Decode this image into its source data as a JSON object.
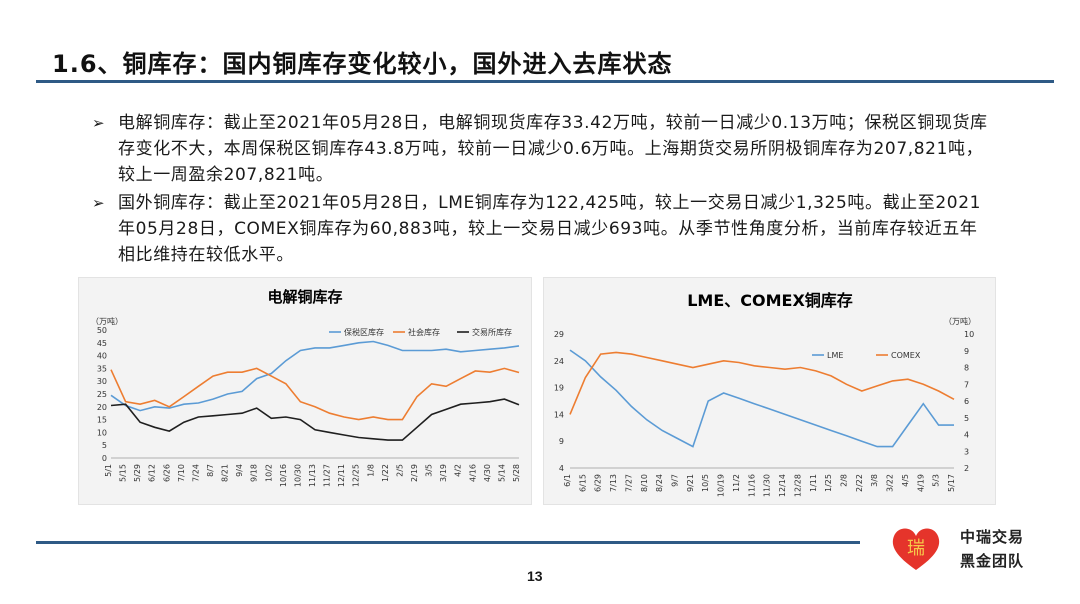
{
  "slide": {
    "title": "1.6、铜库存：国内铜库存变化较小，国外进入去库状态",
    "bullets": [
      "电解铜库存：截止至2021年05月28日，电解铜现货库存33.42万吨，较前一日减少0.13万吨；保税区铜现货库存变化不大，本周保税区铜库存43.8万吨，较前一日减少0.6万吨。上海期货交易所阴极铜库存为207,821吨，较上一周盈余207,821吨。",
      "国外铜库存：截止至2021年05月28日，LME铜库存为122,425吨，较上一交易日减少1,325吨。截止至2021年05月28日，COMEX铜库存为60,883吨，较上一交易日减少693吨。从季节性角度分析，当前库存较近五年相比维持在较低水平。"
    ],
    "page_number": "13",
    "logo": {
      "line1": "中瑞交易",
      "line2": "黑金团队",
      "glyph": "瑞"
    },
    "colors": {
      "accent": "#2e5a85",
      "heart": "#e5342b"
    }
  },
  "chart_data": [
    {
      "type": "line",
      "title": "电解铜库存",
      "unit": "（万吨）",
      "ylim": [
        0,
        50
      ],
      "yticks": [
        "0",
        "5",
        "10",
        "15",
        "20",
        "25",
        "30",
        "35",
        "40",
        "45",
        "50"
      ],
      "x": [
        "5/1",
        "5/15",
        "5/29",
        "6/12",
        "6/26",
        "7/10",
        "7/24",
        "8/7",
        "8/21",
        "9/4",
        "9/18",
        "10/2",
        "10/16",
        "10/30",
        "11/13",
        "11/27",
        "12/11",
        "12/25",
        "1/8",
        "1/22",
        "2/5",
        "2/19",
        "3/5",
        "3/19",
        "4/2",
        "4/16",
        "4/30",
        "5/14",
        "5/28"
      ],
      "series": [
        {
          "name": "保税区库存",
          "color": "#5b9bd5",
          "values": [
            24.5,
            20.5,
            18.5,
            20,
            19.5,
            21,
            21.5,
            23,
            25,
            26,
            31,
            33,
            38,
            42,
            43,
            43,
            44,
            45,
            45.5,
            44,
            42,
            42,
            42,
            42.5,
            41.5,
            42,
            42.5,
            43,
            43.8
          ]
        },
        {
          "name": "社会库存",
          "color": "#ed7d31",
          "values": [
            34.5,
            22,
            21,
            22.5,
            20,
            24,
            28,
            32,
            33.5,
            33.5,
            35,
            32,
            29,
            22,
            20,
            17.5,
            16,
            15,
            16,
            15,
            15,
            24,
            29,
            28,
            31,
            34,
            33.5,
            35,
            33.4
          ]
        },
        {
          "name": "交易所库存",
          "color": "#1f1f1f",
          "values": [
            20.5,
            21,
            14,
            12,
            10.5,
            14,
            16,
            16.5,
            17,
            17.5,
            19.5,
            15.5,
            16,
            15,
            11,
            10,
            9,
            8,
            7.5,
            7,
            7,
            12,
            17,
            19,
            21,
            21.5,
            22,
            23,
            20.8
          ]
        }
      ]
    },
    {
      "type": "line",
      "title": "LME、COMEX铜库存",
      "unit": "（万吨）",
      "y_left": {
        "ylim": [
          4,
          29
        ],
        "ticks": [
          "4",
          "9",
          "14",
          "19",
          "24",
          "29"
        ]
      },
      "y_right": {
        "ylim": [
          2,
          10
        ],
        "ticks": [
          "2",
          "3",
          "4",
          "5",
          "6",
          "7",
          "8",
          "9",
          "10"
        ]
      },
      "x": [
        "6/1",
        "6/15",
        "6/29",
        "7/13",
        "7/27",
        "8/10",
        "8/24",
        "9/7",
        "9/21",
        "10/5",
        "10/19",
        "11/2",
        "11/16",
        "11/30",
        "12/14",
        "12/28",
        "1/11",
        "1/25",
        "2/8",
        "2/22",
        "3/8",
        "3/22",
        "4/5",
        "4/19",
        "5/3",
        "5/17"
      ],
      "series": [
        {
          "name": "LME",
          "color": "#5b9bd5",
          "axis": "left",
          "values": [
            26,
            24,
            21,
            18.5,
            15.5,
            13,
            11,
            9.5,
            8,
            16.5,
            18,
            17,
            16,
            15,
            14,
            13,
            12,
            11,
            10,
            9,
            8,
            8,
            12,
            16,
            12,
            12
          ]
        },
        {
          "name": "COMEX",
          "color": "#ed7d31",
          "axis": "right",
          "values": [
            5.2,
            7.4,
            8.8,
            8.9,
            8.8,
            8.6,
            8.4,
            8.2,
            8.0,
            8.2,
            8.4,
            8.3,
            8.1,
            8.0,
            7.9,
            8.0,
            7.8,
            7.5,
            7.0,
            6.6,
            6.9,
            7.2,
            7.3,
            7.0,
            6.6,
            6.1
          ]
        }
      ]
    }
  ]
}
